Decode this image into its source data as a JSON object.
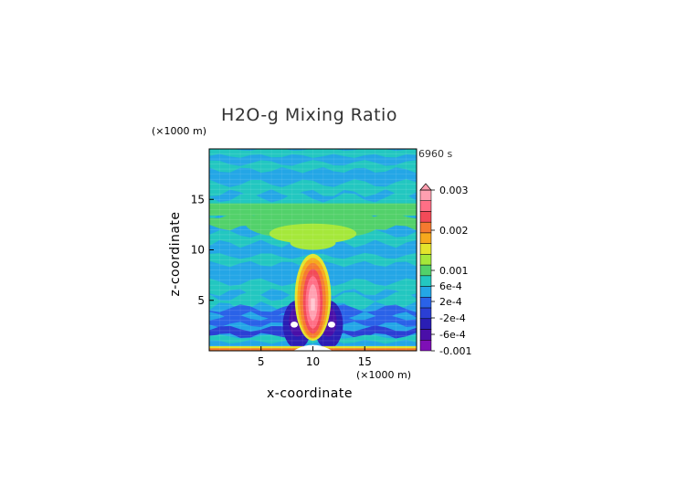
{
  "chart_data": {
    "type": "heatmap",
    "title": "H2O-g Mixing Ratio",
    "time_label": "6960 s",
    "xlabel": "x-coordinate",
    "ylabel": "z-coordinate",
    "x_unit": "(×1000 m)",
    "y_unit": "(×1000 m)",
    "xlim": [
      0,
      20
    ],
    "ylim": [
      0,
      20
    ],
    "x_ticks": [
      "5",
      "10",
      "15"
    ],
    "y_ticks": [
      "5",
      "10",
      "15"
    ],
    "colorbar": {
      "labels": [
        "0.003",
        "0.002",
        "0.001",
        "6e-4",
        "2e-4",
        "-2e-4",
        "-6e-4",
        "-0.001"
      ],
      "colors": [
        "#ff9fb0",
        "#ff6f86",
        "#f24a58",
        "#f57a30",
        "#f6a81d",
        "#e4e42c",
        "#a5e83a",
        "#52d16a",
        "#23c7c0",
        "#24a6e6",
        "#2a62e8",
        "#2b3fd4",
        "#2a1eb4",
        "#4a0fa8",
        "#7e0fb6"
      ]
    },
    "background_color": "#24a6e6",
    "plume_center_x": 10,
    "plume_summary": "max ~0.003 near z=5 (×1000 m), x=10; drying (-0.001) around z=2-3 at x≈9 and x≈11"
  }
}
